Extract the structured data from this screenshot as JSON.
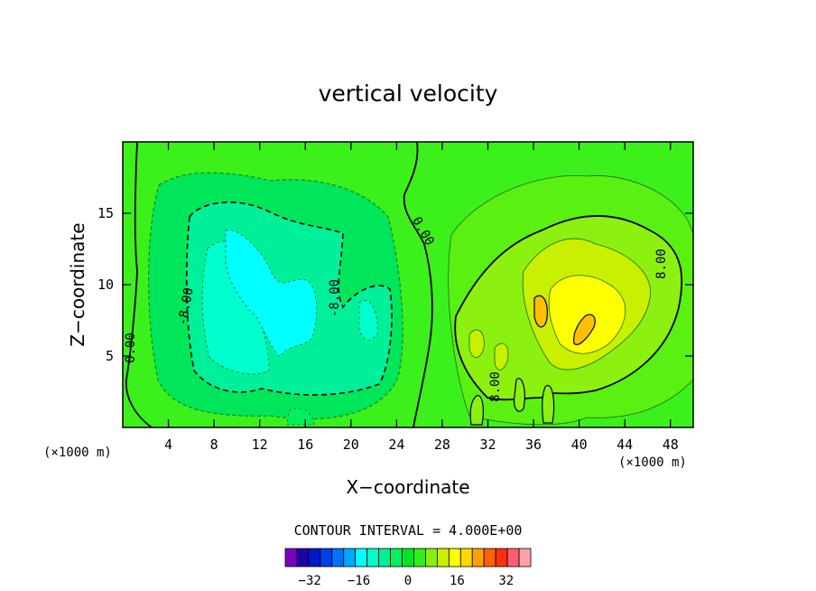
{
  "chart_data": {
    "type": "heatmap",
    "title": "vertical velocity",
    "xlabel": "X−coordinate",
    "ylabel": "Z−coordinate",
    "x_unit_label": "(×1000 m)",
    "y_unit_label": "(×1000 m)",
    "xlim": [
      0,
      50
    ],
    "ylim": [
      0,
      20
    ],
    "x_ticks": [
      4,
      8,
      12,
      16,
      20,
      24,
      28,
      32,
      36,
      40,
      44,
      48
    ],
    "y_ticks": [
      5,
      10,
      15
    ],
    "contour_interval_text": "CONTOUR INTERVAL = 4.000E+00",
    "contour_interval": 4,
    "contour_labels": [
      "0.00",
      "-8.00",
      "-8.00",
      "0.00",
      "8.00",
      "8.00"
    ],
    "colorbar": {
      "levels": [
        -40,
        -36,
        -32,
        -28,
        -24,
        -20,
        -16,
        -12,
        -8,
        -4,
        0,
        4,
        8,
        12,
        16,
        20,
        24,
        28,
        32,
        36,
        40
      ],
      "tick_values": [
        -32,
        -16,
        0,
        16,
        32
      ],
      "tick_labels": [
        "−32",
        "−16",
        "0",
        "16",
        "32"
      ],
      "colors": [
        "#7a00c0",
        "#1e00a8",
        "#0018c8",
        "#0040e8",
        "#0070ff",
        "#00a8ff",
        "#00ffff",
        "#00ffc8",
        "#00f09a",
        "#00f060",
        "#00e628",
        "#30f018",
        "#88f010",
        "#c8f000",
        "#ffff00",
        "#ffd800",
        "#ffa000",
        "#ff6000",
        "#ff3010",
        "#ff6070",
        "#ffa0a8"
      ]
    },
    "features": [
      {
        "sign": "negative",
        "x": 13,
        "z": 9,
        "description": "broad downdraft region"
      },
      {
        "sign": "positive",
        "x": 38,
        "z": 8,
        "description": "updraft core"
      }
    ]
  }
}
